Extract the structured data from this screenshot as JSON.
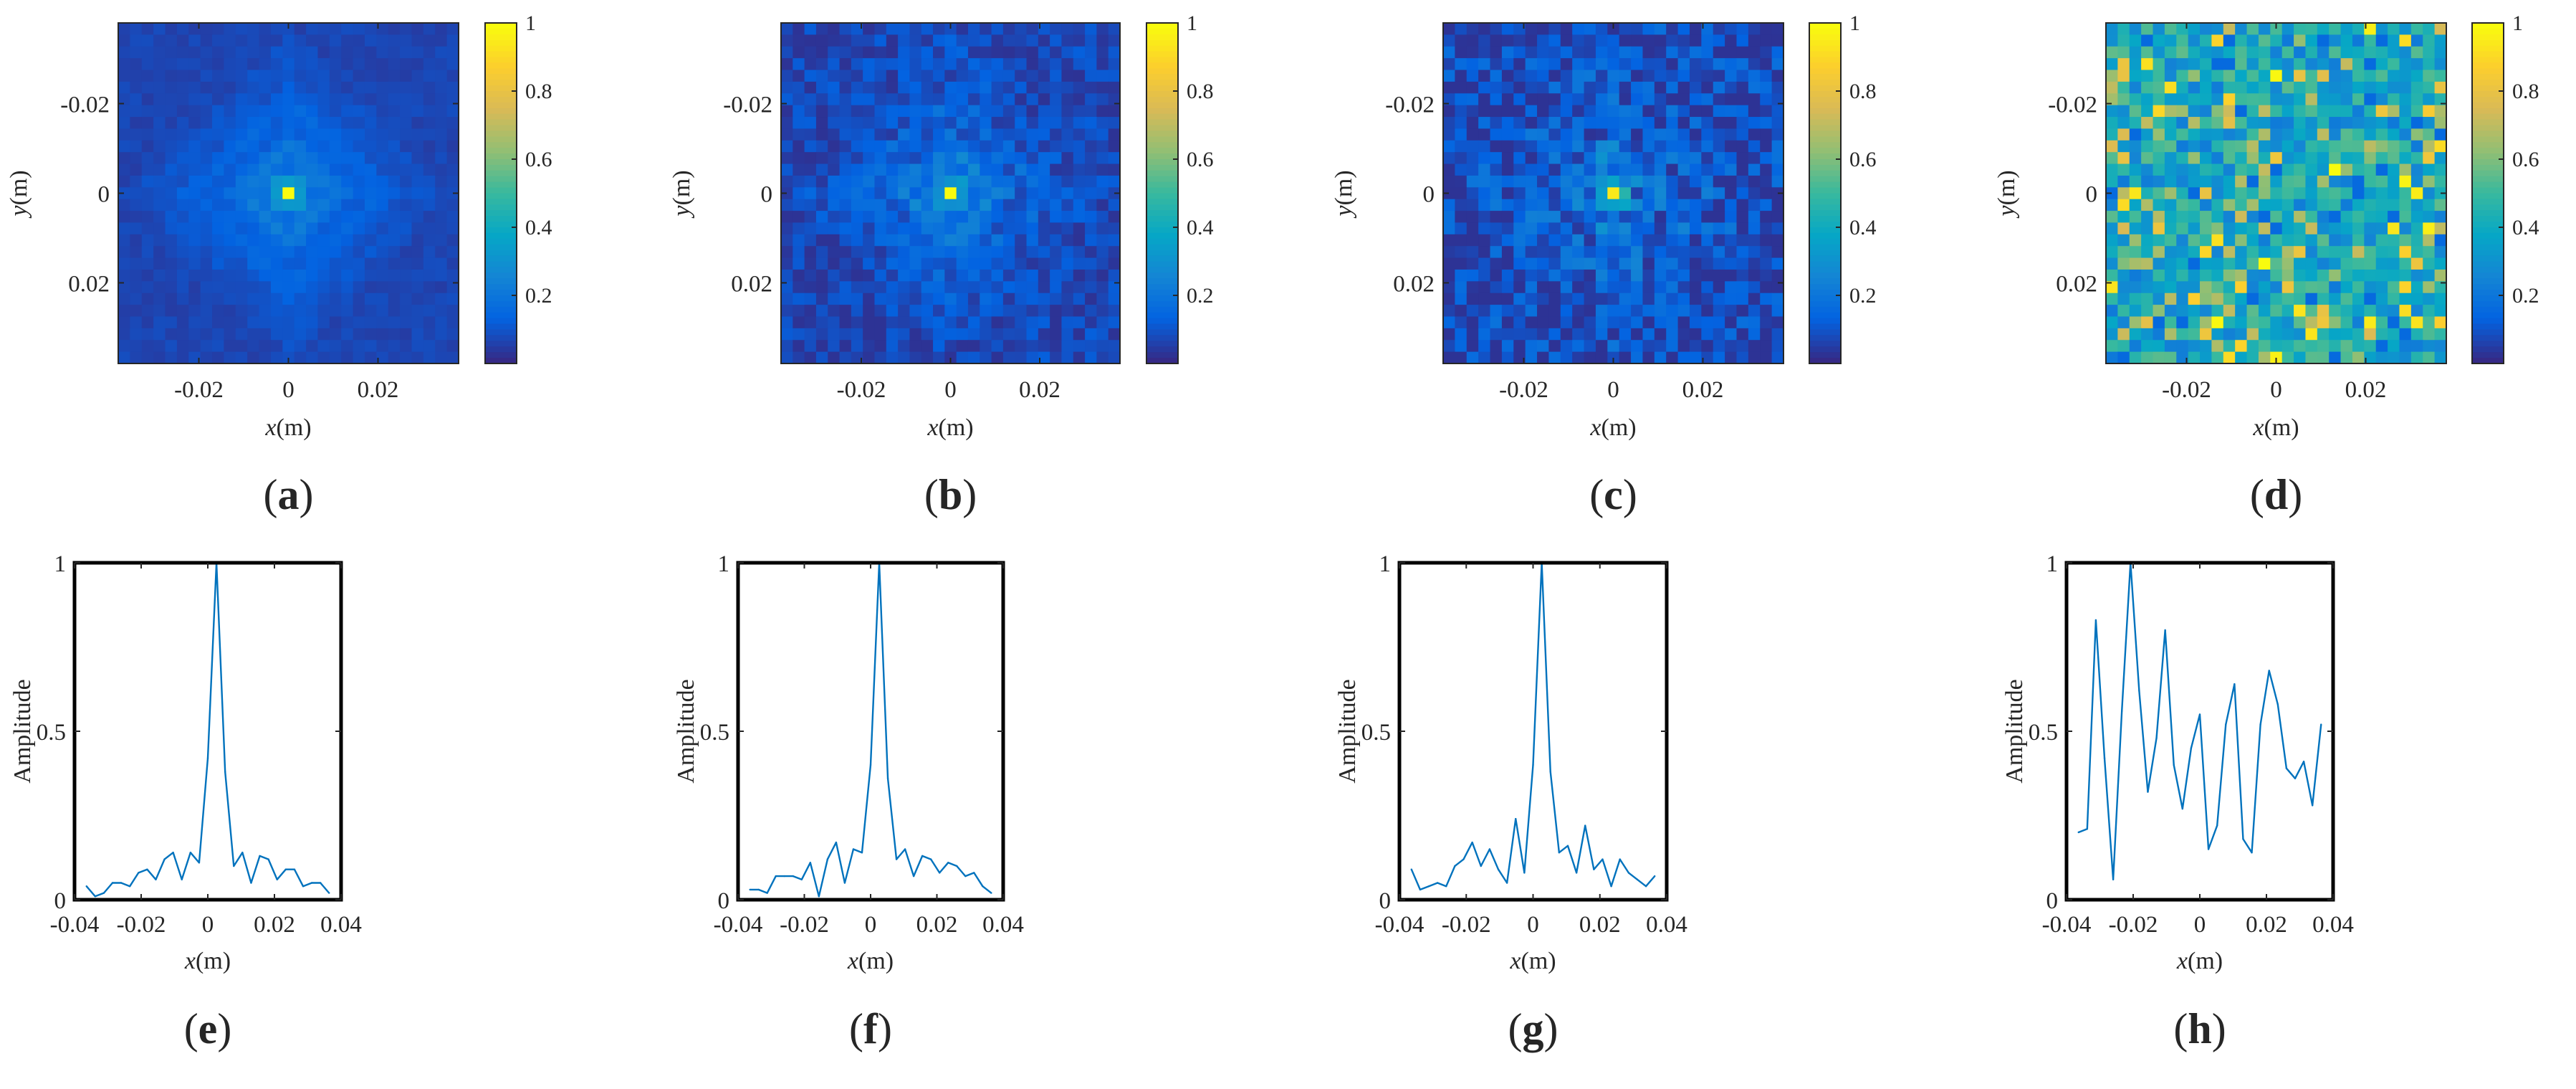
{
  "figure": {
    "panel_labels": [
      "a",
      "b",
      "c",
      "d",
      "e",
      "f",
      "g",
      "h"
    ]
  },
  "colorbar": {
    "tick_labels": [
      "1",
      "0.8",
      "0.6",
      "0.4",
      "0.2"
    ]
  },
  "colors": {
    "line": "#0072BD",
    "parula": [
      "#352A87",
      "#0363E1",
      "#1485D4",
      "#06A7C6",
      "#38B99E",
      "#92BF73",
      "#D9BA56",
      "#FCCE2E",
      "#F9FB0E"
    ]
  },
  "chart_data": [
    {
      "type": "heatmap",
      "id": "a",
      "panel_label": "a",
      "title": "",
      "xlabel_var": "x",
      "xlabel_unit": "(m)",
      "ylabel_var": "y",
      "ylabel_unit": "(m)",
      "xlim": [
        -0.038,
        0.038
      ],
      "ylim": [
        -0.038,
        0.038
      ],
      "x_ticks": [
        -0.02,
        0,
        0.02
      ],
      "x_tick_labels": [
        "-0.02",
        "0",
        "0.02"
      ],
      "y_ticks": [
        -0.02,
        0,
        0.02
      ],
      "y_tick_labels": [
        "-0.02",
        "0",
        "0.02"
      ],
      "grid_size": 29,
      "peak": [
        0.001,
        0.001
      ],
      "pattern": "diamond sidelobes with very low noise",
      "colorbar_range": [
        0,
        1
      ]
    },
    {
      "type": "heatmap",
      "id": "b",
      "panel_label": "b",
      "title": "",
      "xlabel_var": "x",
      "xlabel_unit": "(m)",
      "ylabel_var": "y",
      "ylabel_unit": "(m)",
      "xlim": [
        -0.038,
        0.038
      ],
      "ylim": [
        -0.038,
        0.038
      ],
      "x_ticks": [
        -0.02,
        0,
        0.02
      ],
      "x_tick_labels": [
        "-0.02",
        "0",
        "0.02"
      ],
      "y_ticks": [
        -0.02,
        0,
        0.02
      ],
      "y_tick_labels": [
        "-0.02",
        "0",
        "0.02"
      ],
      "grid_size": 29,
      "peak": [
        0.002,
        0.001
      ],
      "pattern": "diamond sidelobes with mild noise",
      "colorbar_range": [
        0,
        1
      ]
    },
    {
      "type": "heatmap",
      "id": "c",
      "panel_label": "c",
      "title": "",
      "xlabel_var": "x",
      "xlabel_unit": "(m)",
      "ylabel_var": "y",
      "ylabel_unit": "(m)",
      "xlim": [
        -0.038,
        0.038
      ],
      "ylim": [
        -0.038,
        0.038
      ],
      "x_ticks": [
        -0.02,
        0,
        0.02
      ],
      "x_tick_labels": [
        "-0.02",
        "0",
        "0.02"
      ],
      "y_ticks": [
        -0.02,
        0,
        0.02
      ],
      "y_tick_labels": [
        "-0.02",
        "0",
        "0.02"
      ],
      "grid_size": 29,
      "peak": [
        0.001,
        0.001
      ],
      "pattern": "focused peak with moderate noise",
      "colorbar_range": [
        0,
        1
      ]
    },
    {
      "type": "heatmap",
      "id": "d",
      "panel_label": "d",
      "title": "",
      "xlabel_var": "x",
      "xlabel_unit": "(m)",
      "ylabel_var": "y",
      "ylabel_unit": "(m)",
      "xlim": [
        -0.038,
        0.038
      ],
      "ylim": [
        -0.038,
        0.038
      ],
      "x_ticks": [
        -0.02,
        0,
        0.02
      ],
      "x_tick_labels": [
        "-0.02",
        "0",
        "0.02"
      ],
      "y_ticks": [
        -0.02,
        0,
        0.02
      ],
      "y_tick_labels": [
        "-0.02",
        "0",
        "0.02"
      ],
      "grid_size": 29,
      "peak": null,
      "pattern": "unfocused random field, values mostly 0.3-0.6 with scattered highs",
      "colorbar_range": [
        0,
        1
      ]
    },
    {
      "type": "line",
      "id": "e",
      "panel_label": "e",
      "title": "",
      "xlabel_var": "x",
      "xlabel_unit": "(m)",
      "ylabel": "Amplitude",
      "xlim": [
        -0.04,
        0.04
      ],
      "ylim": [
        0,
        1
      ],
      "x_ticks": [
        -0.04,
        -0.02,
        0,
        0.02,
        0.04
      ],
      "x_tick_labels": [
        "-0.04",
        "-0.02",
        "0",
        "0.02",
        "0.04"
      ],
      "y_ticks": [
        0,
        0.5,
        1
      ],
      "y_tick_labels": [
        "0",
        "0.5",
        "1"
      ],
      "x": [
        -0.0364,
        -0.0338,
        -0.0312,
        -0.0286,
        -0.026,
        -0.0234,
        -0.0208,
        -0.0182,
        -0.0156,
        -0.013,
        -0.0104,
        -0.0078,
        -0.0052,
        -0.0026,
        0.0,
        0.0026,
        0.0052,
        0.0078,
        0.0104,
        0.013,
        0.0156,
        0.0182,
        0.0208,
        0.0234,
        0.026,
        0.0286,
        0.0312,
        0.0338,
        0.0364
      ],
      "values": [
        0.04,
        0.01,
        0.02,
        0.05,
        0.05,
        0.04,
        0.08,
        0.09,
        0.06,
        0.12,
        0.14,
        0.06,
        0.14,
        0.11,
        0.42,
        1.0,
        0.38,
        0.1,
        0.14,
        0.05,
        0.13,
        0.12,
        0.06,
        0.09,
        0.09,
        0.04,
        0.05,
        0.05,
        0.02
      ]
    },
    {
      "type": "line",
      "id": "f",
      "panel_label": "f",
      "title": "",
      "xlabel_var": "x",
      "xlabel_unit": "(m)",
      "ylabel": "Amplitude",
      "xlim": [
        -0.04,
        0.04
      ],
      "ylim": [
        0,
        1
      ],
      "x_ticks": [
        -0.04,
        -0.02,
        0,
        0.02,
        0.04
      ],
      "x_tick_labels": [
        "-0.04",
        "-0.02",
        "0",
        "0.02",
        "0.04"
      ],
      "y_ticks": [
        0,
        0.5,
        1
      ],
      "y_tick_labels": [
        "0",
        "0.5",
        "1"
      ],
      "x": [
        -0.0364,
        -0.0338,
        -0.0312,
        -0.0286,
        -0.026,
        -0.0234,
        -0.0208,
        -0.0182,
        -0.0156,
        -0.013,
        -0.0104,
        -0.0078,
        -0.0052,
        -0.0026,
        0.0,
        0.0026,
        0.0052,
        0.0078,
        0.0104,
        0.013,
        0.0156,
        0.0182,
        0.0208,
        0.0234,
        0.026,
        0.0286,
        0.0312,
        0.0338,
        0.0364
      ],
      "values": [
        0.03,
        0.03,
        0.02,
        0.07,
        0.07,
        0.07,
        0.06,
        0.11,
        0.01,
        0.12,
        0.17,
        0.05,
        0.15,
        0.14,
        0.4,
        1.0,
        0.36,
        0.12,
        0.15,
        0.07,
        0.13,
        0.12,
        0.08,
        0.11,
        0.1,
        0.07,
        0.08,
        0.04,
        0.02
      ]
    },
    {
      "type": "line",
      "id": "g",
      "panel_label": "g",
      "title": "",
      "xlabel_var": "x",
      "xlabel_unit": "(m)",
      "ylabel": "Amplitude",
      "xlim": [
        -0.04,
        0.04
      ],
      "ylim": [
        0,
        1
      ],
      "x_ticks": [
        -0.04,
        -0.02,
        0,
        0.02,
        0.04
      ],
      "x_tick_labels": [
        "-0.04",
        "-0.02",
        "0",
        "0.02",
        "0.04"
      ],
      "y_ticks": [
        0,
        0.5,
        1
      ],
      "y_tick_labels": [
        "0",
        "0.5",
        "1"
      ],
      "x": [
        -0.0364,
        -0.0338,
        -0.0312,
        -0.0286,
        -0.026,
        -0.0234,
        -0.0208,
        -0.0182,
        -0.0156,
        -0.013,
        -0.0104,
        -0.0078,
        -0.0052,
        -0.0026,
        0.0,
        0.0026,
        0.0052,
        0.0078,
        0.0104,
        0.013,
        0.0156,
        0.0182,
        0.0208,
        0.0234,
        0.026,
        0.0286,
        0.0312,
        0.0338,
        0.0364
      ],
      "values": [
        0.09,
        0.03,
        0.04,
        0.05,
        0.04,
        0.1,
        0.12,
        0.17,
        0.1,
        0.15,
        0.09,
        0.05,
        0.24,
        0.08,
        0.4,
        1.0,
        0.38,
        0.14,
        0.16,
        0.08,
        0.22,
        0.09,
        0.12,
        0.04,
        0.12,
        0.08,
        0.06,
        0.04,
        0.07
      ]
    },
    {
      "type": "line",
      "id": "h",
      "panel_label": "h",
      "title": "",
      "xlabel_var": "x",
      "xlabel_unit": "(m)",
      "ylabel": "Amplitude",
      "xlim": [
        -0.04,
        0.04
      ],
      "ylim": [
        0,
        1
      ],
      "x_ticks": [
        -0.04,
        -0.02,
        0,
        0.02,
        0.04
      ],
      "x_tick_labels": [
        "-0.04",
        "-0.02",
        "0",
        "0.02",
        "0.04"
      ],
      "y_ticks": [
        0,
        0.5,
        1
      ],
      "y_tick_labels": [
        "0",
        "0.5",
        "1"
      ],
      "x": [
        -0.0364,
        -0.0338,
        -0.0312,
        -0.0286,
        -0.026,
        -0.0234,
        -0.0208,
        -0.0182,
        -0.0156,
        -0.013,
        -0.0104,
        -0.0078,
        -0.0052,
        -0.0026,
        0.0,
        0.0026,
        0.0052,
        0.0078,
        0.0104,
        0.013,
        0.0156,
        0.0182,
        0.0208,
        0.0234,
        0.026,
        0.0286,
        0.0312,
        0.0338,
        0.0364
      ],
      "values": [
        0.2,
        0.21,
        0.83,
        0.42,
        0.06,
        0.56,
        1.0,
        0.62,
        0.32,
        0.48,
        0.8,
        0.4,
        0.27,
        0.45,
        0.55,
        0.15,
        0.22,
        0.52,
        0.64,
        0.18,
        0.14,
        0.52,
        0.68,
        0.58,
        0.39,
        0.36,
        0.41,
        0.28,
        0.52
      ]
    }
  ]
}
